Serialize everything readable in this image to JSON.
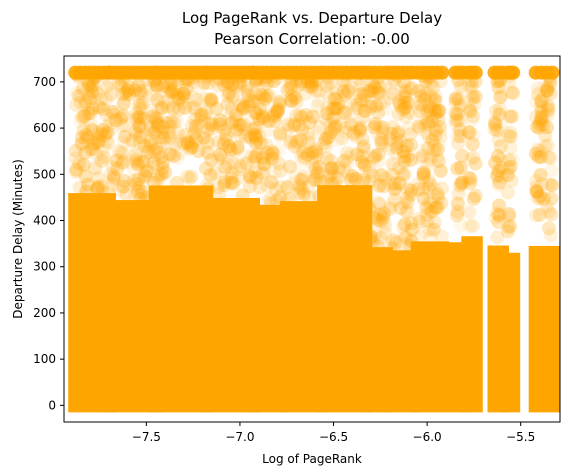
{
  "chart_data": {
    "type": "scatter",
    "title": "Log PageRank vs. Departure Delay",
    "subtitle": "Pearson Correlation: -0.00",
    "xlabel": "Log of PageRank",
    "ylabel": "Departure Delay (Minutes)",
    "xlim": [
      -7.94,
      -5.29
    ],
    "ylim": [
      -36,
      756
    ],
    "x_ticks": [
      -7.5,
      -7.0,
      -6.5,
      -6.0,
      -5.5
    ],
    "x_tick_labels": [
      "−7.5",
      "−7.0",
      "−6.5",
      "−6.0",
      "−5.5"
    ],
    "y_ticks": [
      0,
      100,
      200,
      300,
      400,
      500,
      600,
      700
    ],
    "y_tick_labels": [
      "0",
      "100",
      "200",
      "300",
      "400",
      "500",
      "600",
      "700"
    ],
    "grid": false,
    "marker_color": "#ffa500",
    "x_clusters": [
      {
        "x_start": -7.88,
        "x_end": -7.7,
        "y_min": 0,
        "y_max": 720,
        "density": "high"
      },
      {
        "x_start": -7.7,
        "x_end": -7.45,
        "y_min": 0,
        "y_max": 720,
        "density": "high"
      },
      {
        "x_start": -7.45,
        "x_end": -7.18,
        "y_min": 0,
        "y_max": 720,
        "density": "high"
      },
      {
        "x_start": -7.18,
        "x_end": -6.93,
        "y_min": 0,
        "y_max": 720,
        "density": "high"
      },
      {
        "x_start": -6.93,
        "x_end": -6.78,
        "y_min": 0,
        "y_max": 720,
        "density": "high"
      },
      {
        "x_start": -6.75,
        "x_end": -6.57,
        "y_min": 0,
        "y_max": 720,
        "density": "high"
      },
      {
        "x_start": -6.55,
        "x_end": -6.33,
        "y_min": 0,
        "y_max": 720,
        "density": "high"
      },
      {
        "x_start": -6.31,
        "x_end": -6.22,
        "y_min": 0,
        "y_max": 720,
        "density": "medium"
      },
      {
        "x_start": -6.2,
        "x_end": -6.08,
        "y_min": 0,
        "y_max": 720,
        "density": "medium"
      },
      {
        "x_start": -6.05,
        "x_end": -5.92,
        "y_min": 0,
        "y_max": 720,
        "density": "medium"
      },
      {
        "x_start": -5.85,
        "x_end": -5.81,
        "y_min": 0,
        "y_max": 720,
        "density": "medium"
      },
      {
        "x_start": -5.78,
        "x_end": -5.74,
        "y_min": 0,
        "y_max": 720,
        "density": "medium"
      },
      {
        "x_start": -5.64,
        "x_end": -5.6,
        "y_min": 0,
        "y_max": 720,
        "density": "medium"
      },
      {
        "x_start": -5.57,
        "x_end": -5.54,
        "y_min": 0,
        "y_max": 720,
        "density": "medium"
      },
      {
        "x_start": -5.42,
        "x_end": -5.33,
        "y_min": 0,
        "y_max": 720,
        "density": "medium"
      }
    ]
  }
}
